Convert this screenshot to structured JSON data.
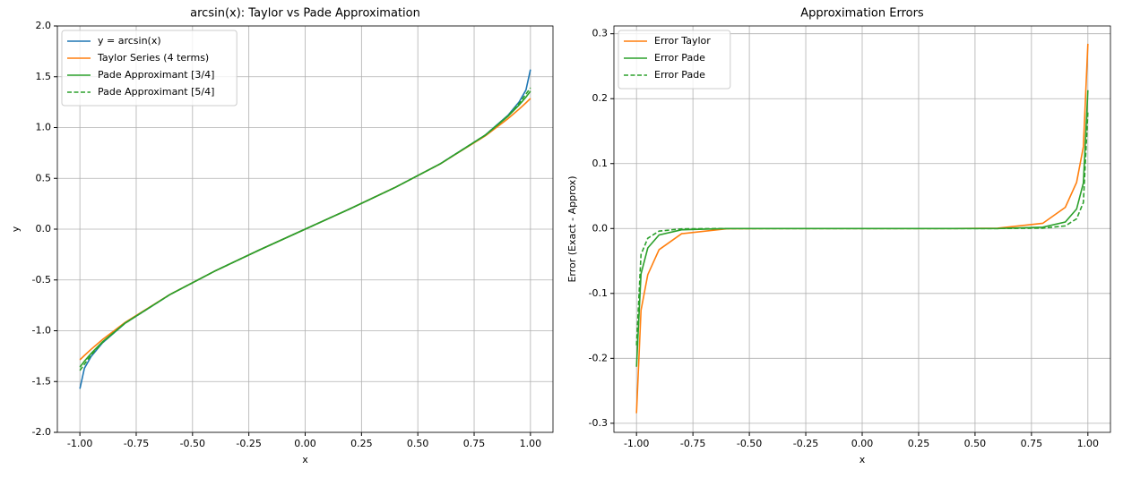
{
  "chart_data": [
    {
      "type": "line",
      "title": "arcsin(x): Taylor vs Pade Approximation",
      "xlabel": "x",
      "ylabel": "y",
      "x": [
        -1,
        -0.98,
        -0.95,
        -0.9,
        -0.8,
        -0.6,
        -0.4,
        -0.2,
        0,
        0.2,
        0.4,
        0.6,
        0.8,
        0.9,
        0.95,
        0.98,
        1
      ],
      "series": [
        {
          "name": "y = arcsin(x)",
          "color": "#1f77b4",
          "linestyle": "solid",
          "values": [
            -1.5708,
            -1.3694,
            -1.2532,
            -1.1198,
            -0.9273,
            -0.6435,
            -0.4115,
            -0.2014,
            0,
            0.2014,
            0.4115,
            0.6435,
            0.9273,
            1.1198,
            1.2532,
            1.3694,
            1.5708
          ]
        },
        {
          "name": "Taylor Series (4 terms)",
          "color": "#ff7f0e",
          "linestyle": "solid",
          "values": [
            -1.2863,
            -1.2435,
            -1.1821,
            -1.0872,
            -0.9193,
            -0.6431,
            -0.4116,
            -0.2013,
            0,
            0.2013,
            0.4116,
            0.6431,
            0.9193,
            1.0872,
            1.1821,
            1.2435,
            1.2863
          ]
        },
        {
          "name": "Pade Approximant [3/4]",
          "color": "#2ca02c",
          "linestyle": "solid",
          "values": [
            -1.3578,
            -1.2994,
            -1.2232,
            -1.1098,
            -0.9253,
            -0.6433,
            -0.4115,
            -0.2014,
            0,
            0.2014,
            0.4115,
            0.6433,
            0.9253,
            1.1098,
            1.2232,
            1.2994,
            1.3578
          ]
        },
        {
          "name": "Pade Approximant [5/4]",
          "color": "#2ca02c",
          "linestyle": "dashed",
          "values": [
            -1.3908,
            -1.3294,
            -1.2382,
            -1.1158,
            -0.9268,
            -0.6435,
            -0.4115,
            -0.2014,
            0,
            0.2014,
            0.4115,
            0.6435,
            0.9268,
            1.1158,
            1.2382,
            1.3294,
            1.3908
          ]
        }
      ],
      "xlim": [
        -1.1,
        1.1
      ],
      "xticks": [
        {
          "value": -1,
          "label": "-1.00"
        },
        {
          "value": -0.75,
          "label": "-0.75"
        },
        {
          "value": -0.5,
          "label": "-0.50"
        },
        {
          "value": -0.25,
          "label": "-0.25"
        },
        {
          "value": 0,
          "label": "0.00"
        },
        {
          "value": 0.25,
          "label": "0.25"
        },
        {
          "value": 0.5,
          "label": "0.50"
        },
        {
          "value": 0.75,
          "label": "0.75"
        },
        {
          "value": 1,
          "label": "1.00"
        }
      ],
      "ylim": [
        -2,
        2
      ],
      "yticks": [
        {
          "value": -2,
          "label": "-2.0"
        },
        -1.5,
        {
          "value": -1,
          "label": "-1.0"
        },
        -0.5,
        {
          "value": 0,
          "label": "0.0"
        },
        0.5,
        {
          "value": 1,
          "label": "1.0"
        },
        1.5,
        {
          "value": 2,
          "label": "2.0"
        }
      ],
      "grid": true,
      "legend": "upper left"
    },
    {
      "type": "line",
      "title": "Approximation Errors",
      "xlabel": "x",
      "ylabel": "Error (Exact - Approx)",
      "x": [
        -1,
        -0.98,
        -0.95,
        -0.9,
        -0.8,
        -0.6,
        -0.4,
        -0.2,
        0,
        0.2,
        0.4,
        0.6,
        0.8,
        0.9,
        0.95,
        0.98,
        1
      ],
      "series": [
        {
          "name": "Error Taylor",
          "color": "#ff7f0e",
          "linestyle": "solid",
          "values": [
            -0.2845,
            -0.1259,
            -0.0711,
            -0.0326,
            -0.008,
            -0.0004,
            0,
            0,
            0,
            0,
            0,
            0.0004,
            0.008,
            0.0326,
            0.0711,
            0.1259,
            0.2845
          ]
        },
        {
          "name": "Error Pade",
          "color": "#2ca02c",
          "linestyle": "solid",
          "values": [
            -0.213,
            -0.07,
            -0.03,
            -0.01,
            -0.002,
            0,
            0,
            0,
            0,
            0,
            0,
            0,
            0.002,
            0.01,
            0.03,
            0.07,
            0.213
          ]
        },
        {
          "name": "Error Pade",
          "color": "#2ca02c",
          "linestyle": "dashed",
          "values": [
            -0.18,
            -0.04,
            -0.015,
            -0.004,
            -0.0005,
            0,
            0,
            0,
            0,
            0,
            0,
            0,
            0.0005,
            0.004,
            0.015,
            0.04,
            0.18
          ]
        }
      ],
      "xlim": [
        -1.1,
        1.1
      ],
      "xticks": [
        {
          "value": -1,
          "label": "-1.00"
        },
        {
          "value": -0.75,
          "label": "-0.75"
        },
        {
          "value": -0.5,
          "label": "-0.50"
        },
        {
          "value": -0.25,
          "label": "-0.25"
        },
        {
          "value": 0,
          "label": "0.00"
        },
        {
          "value": 0.25,
          "label": "0.25"
        },
        {
          "value": 0.5,
          "label": "0.50"
        },
        {
          "value": 0.75,
          "label": "0.75"
        },
        {
          "value": 1,
          "label": "1.00"
        }
      ],
      "ylim": [
        -0.314,
        0.312
      ],
      "yticks": [
        -0.3,
        -0.2,
        -0.1,
        {
          "value": 0,
          "label": "0.0"
        },
        0.1,
        0.2,
        0.3
      ],
      "grid": true,
      "legend": "upper left"
    }
  ]
}
